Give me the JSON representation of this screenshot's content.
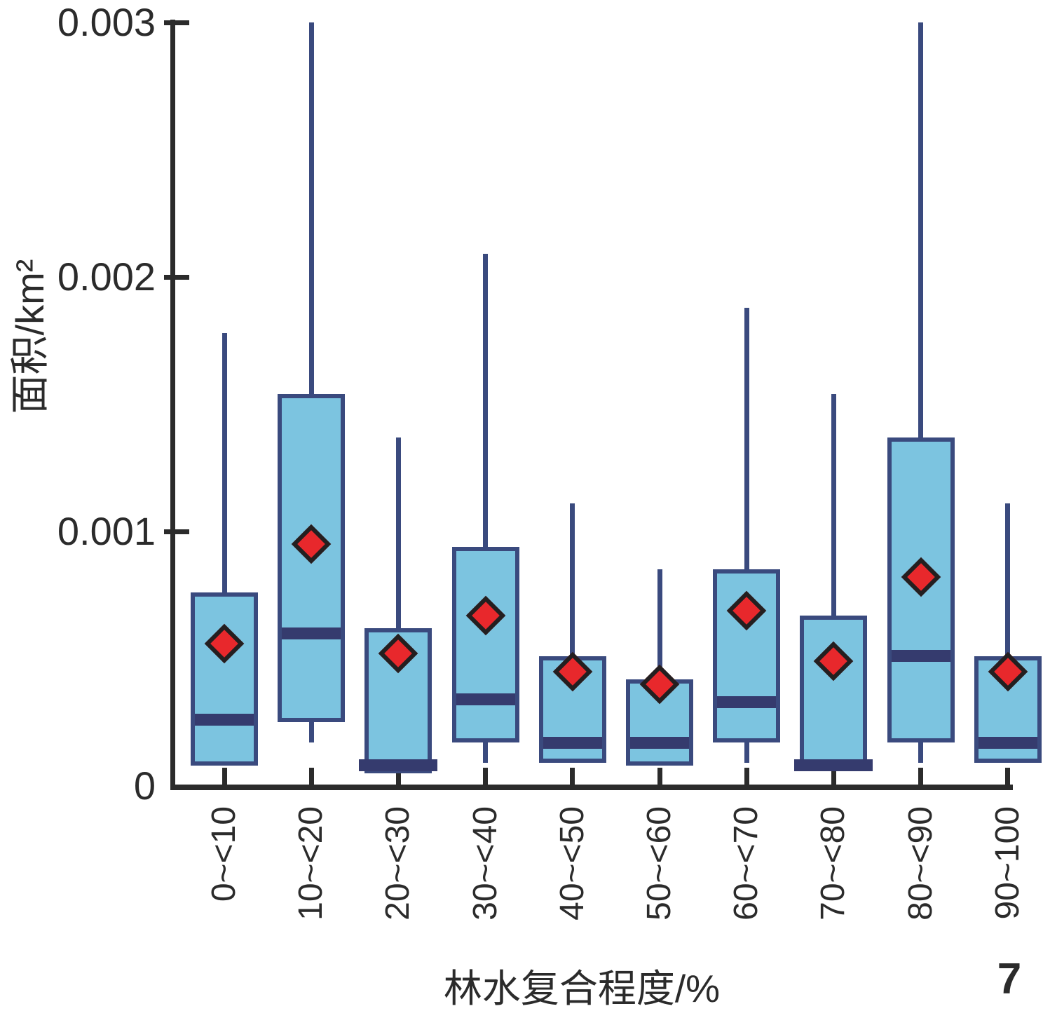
{
  "figure": {
    "number": "7",
    "background": "#ffffff"
  },
  "y_axis": {
    "title": "面积/km²",
    "tick_labels": [
      "0",
      "0.001",
      "0.002",
      "0.003"
    ],
    "tick_values": [
      0,
      0.001,
      0.002,
      0.003
    ]
  },
  "x_axis": {
    "title": "林水复合程度/%"
  },
  "colors": {
    "box_fill": "#7cc4e0",
    "box_border": "#3a4a7e",
    "whisker": "#3a4a7e",
    "median_band": "#353b6e",
    "mean_fill": "#e8282c",
    "mean_border": "#231f20",
    "axis": "#2b2b2b",
    "text": "#2b2b2b"
  },
  "chart_data": {
    "type": "boxplot",
    "title": "",
    "xlabel": "林水复合程度/%",
    "ylabel": "面积/km²",
    "ylim": [
      0,
      0.003
    ],
    "y_ticks": [
      0,
      0.001,
      0.002,
      0.003
    ],
    "grid": false,
    "legend": false,
    "mean_marker": "red-diamond",
    "categories": [
      "0~<10",
      "10~<20",
      "20~<30",
      "30~<40",
      "40~<50",
      "50~<60",
      "60~<70",
      "70~<80",
      "80~<90",
      "90~100"
    ],
    "boxes": [
      {
        "category": "0~<10",
        "min": 8e-05,
        "q1": 8e-05,
        "median": 0.00026,
        "q3": 0.00076,
        "max": 0.00178,
        "mean": 0.00056
      },
      {
        "category": "10~<20",
        "min": 0.00017,
        "q1": 0.00025,
        "median": 0.0006,
        "q3": 0.00154,
        "max": 0.003,
        "mean": 0.00095
      },
      {
        "category": "20~<30",
        "min": 5e-05,
        "q1": 5e-05,
        "median": 8e-05,
        "q3": 0.00062,
        "max": 0.00137,
        "mean": 0.00052
      },
      {
        "category": "30~<40",
        "min": 9e-05,
        "q1": 0.00017,
        "median": 0.00034,
        "q3": 0.00094,
        "max": 0.00209,
        "mean": 0.00067
      },
      {
        "category": "40~<50",
        "min": 9e-05,
        "q1": 9e-05,
        "median": 0.00017,
        "q3": 0.00051,
        "max": 0.00111,
        "mean": 0.00045
      },
      {
        "category": "50~<60",
        "min": 8e-05,
        "q1": 8e-05,
        "median": 0.00017,
        "q3": 0.00042,
        "max": 0.00085,
        "mean": 0.0004
      },
      {
        "category": "60~<70",
        "min": 9e-05,
        "q1": 0.00017,
        "median": 0.00033,
        "q3": 0.00085,
        "max": 0.00188,
        "mean": 0.00069
      },
      {
        "category": "70~<80",
        "min": 6e-05,
        "q1": 6e-05,
        "median": 8e-05,
        "q3": 0.00067,
        "max": 0.00154,
        "mean": 0.00049
      },
      {
        "category": "80~<90",
        "min": 9e-05,
        "q1": 0.00017,
        "median": 0.00051,
        "q3": 0.00137,
        "max": 0.003,
        "mean": 0.00082
      },
      {
        "category": "90~100",
        "min": 9e-05,
        "q1": 9e-05,
        "median": 0.00017,
        "q3": 0.00051,
        "max": 0.00111,
        "mean": 0.00045
      }
    ],
    "notes": "whisker tops of 10~<20 and 80~<90 reach the 0.003 axis limit"
  }
}
